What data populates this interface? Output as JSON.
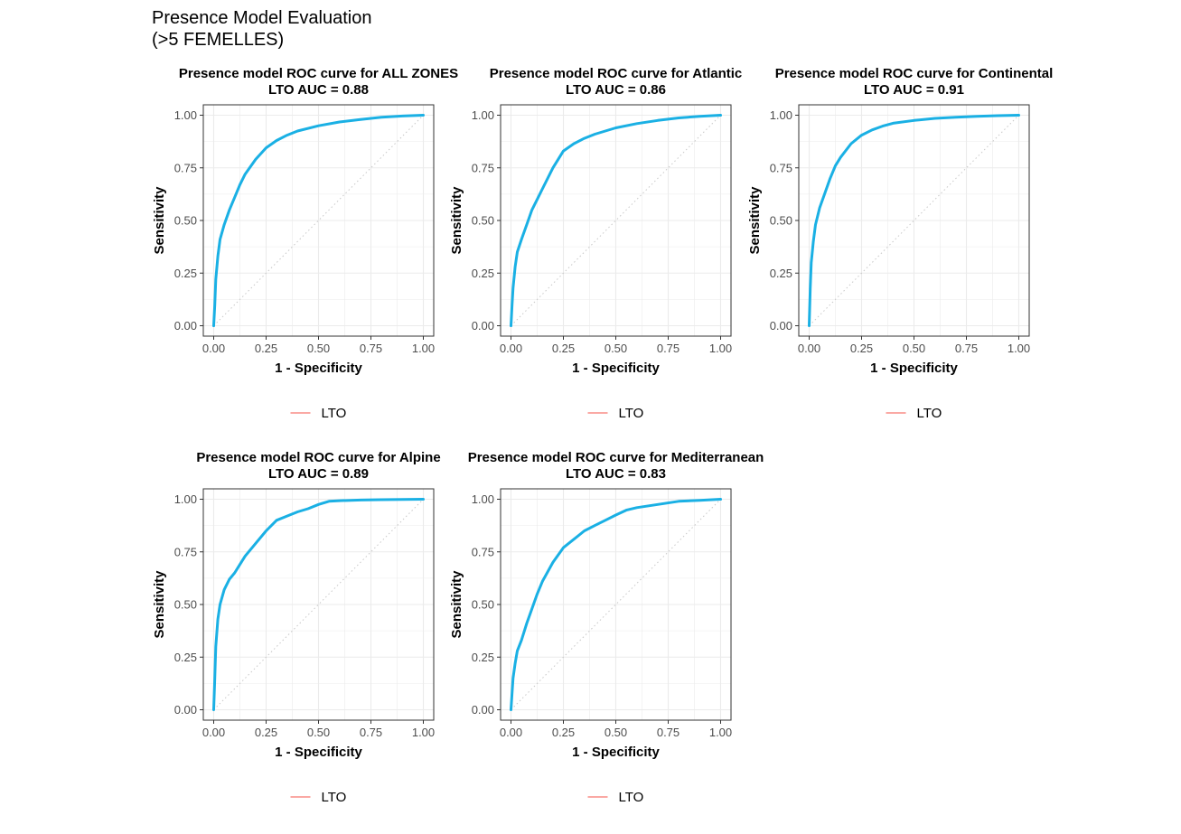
{
  "figure": {
    "title_line1": "Presence Model Evaluation",
    "title_line2": "(>5 FEMELLES)"
  },
  "colors": {
    "curve": "#1ab0e4",
    "legend_line": "#f8766d",
    "diagonal": "#c8c8c8",
    "grid": "#ebebeb",
    "panel_border": "#333333",
    "tick_text": "#4d4d4d"
  },
  "chart_data": [
    {
      "type": "line",
      "title": "Presence model ROC curve for ALL ZONES",
      "subtitle": "LTO AUC = 0.88",
      "xlabel": "1 - Specificity",
      "ylabel": "Sensitivity",
      "xlim": [
        0,
        1
      ],
      "ylim": [
        0,
        1
      ],
      "x_ticks": [
        "0.00",
        "0.25",
        "0.50",
        "0.75",
        "1.00"
      ],
      "y_ticks": [
        "0.00",
        "0.25",
        "0.50",
        "0.75",
        "1.00"
      ],
      "grid": true,
      "legend": {
        "position": "bottom",
        "entries": [
          "LTO"
        ]
      },
      "series": [
        {
          "name": "LTO",
          "x": [
            0,
            0.005,
            0.01,
            0.02,
            0.03,
            0.05,
            0.075,
            0.1,
            0.125,
            0.15,
            0.2,
            0.25,
            0.3,
            0.35,
            0.4,
            0.5,
            0.6,
            0.7,
            0.8,
            0.9,
            1.0
          ],
          "y": [
            0,
            0.1,
            0.22,
            0.33,
            0.41,
            0.48,
            0.55,
            0.61,
            0.67,
            0.72,
            0.79,
            0.845,
            0.88,
            0.905,
            0.925,
            0.95,
            0.968,
            0.98,
            0.99,
            0.996,
            1.0
          ]
        }
      ]
    },
    {
      "type": "line",
      "title": "Presence model ROC curve for Atlantic",
      "subtitle": "LTO AUC = 0.86",
      "xlabel": "1 - Specificity",
      "ylabel": "Sensitivity",
      "xlim": [
        0,
        1
      ],
      "ylim": [
        0,
        1
      ],
      "x_ticks": [
        "0.00",
        "0.25",
        "0.50",
        "0.75",
        "1.00"
      ],
      "y_ticks": [
        "0.00",
        "0.25",
        "0.50",
        "0.75",
        "1.00"
      ],
      "grid": true,
      "legend": {
        "position": "bottom",
        "entries": [
          "LTO"
        ]
      },
      "series": [
        {
          "name": "LTO",
          "x": [
            0,
            0.005,
            0.01,
            0.02,
            0.03,
            0.05,
            0.075,
            0.1,
            0.125,
            0.15,
            0.2,
            0.25,
            0.3,
            0.35,
            0.4,
            0.5,
            0.6,
            0.7,
            0.8,
            0.9,
            1.0
          ],
          "y": [
            0,
            0.1,
            0.18,
            0.28,
            0.35,
            0.41,
            0.48,
            0.55,
            0.6,
            0.65,
            0.75,
            0.83,
            0.865,
            0.89,
            0.91,
            0.94,
            0.96,
            0.975,
            0.987,
            0.995,
            1.0
          ]
        }
      ]
    },
    {
      "type": "line",
      "title": "Presence model ROC curve for Continental",
      "subtitle": "LTO AUC = 0.91",
      "xlabel": "1 - Specificity",
      "ylabel": "Sensitivity",
      "xlim": [
        0,
        1
      ],
      "ylim": [
        0,
        1
      ],
      "x_ticks": [
        "0.00",
        "0.25",
        "0.50",
        "0.75",
        "1.00"
      ],
      "y_ticks": [
        "0.00",
        "0.25",
        "0.50",
        "0.75",
        "1.00"
      ],
      "grid": true,
      "legend": {
        "position": "bottom",
        "entries": [
          "LTO"
        ]
      },
      "series": [
        {
          "name": "LTO",
          "x": [
            0,
            0.005,
            0.01,
            0.02,
            0.03,
            0.05,
            0.075,
            0.1,
            0.125,
            0.15,
            0.2,
            0.25,
            0.3,
            0.35,
            0.4,
            0.5,
            0.6,
            0.7,
            0.8,
            0.9,
            1.0
          ],
          "y": [
            0,
            0.18,
            0.3,
            0.4,
            0.48,
            0.56,
            0.63,
            0.7,
            0.76,
            0.8,
            0.865,
            0.905,
            0.93,
            0.948,
            0.962,
            0.975,
            0.985,
            0.99,
            0.995,
            0.998,
            1.0
          ]
        }
      ]
    },
    {
      "type": "line",
      "title": "Presence model ROC curve for Alpine",
      "subtitle": "LTO AUC = 0.89",
      "xlabel": "1 - Specificity",
      "ylabel": "Sensitivity",
      "xlim": [
        0,
        1
      ],
      "ylim": [
        0,
        1
      ],
      "x_ticks": [
        "0.00",
        "0.25",
        "0.50",
        "0.75",
        "1.00"
      ],
      "y_ticks": [
        "0.00",
        "0.25",
        "0.50",
        "0.75",
        "1.00"
      ],
      "grid": true,
      "legend": {
        "position": "bottom",
        "entries": [
          "LTO"
        ]
      },
      "series": [
        {
          "name": "LTO",
          "x": [
            0,
            0.005,
            0.01,
            0.02,
            0.03,
            0.05,
            0.075,
            0.1,
            0.125,
            0.15,
            0.2,
            0.25,
            0.3,
            0.35,
            0.4,
            0.45,
            0.5,
            0.55,
            0.6,
            0.7,
            0.8,
            0.9,
            1.0
          ],
          "y": [
            0,
            0.15,
            0.3,
            0.43,
            0.5,
            0.57,
            0.62,
            0.65,
            0.69,
            0.73,
            0.79,
            0.85,
            0.9,
            0.92,
            0.94,
            0.955,
            0.975,
            0.99,
            0.993,
            0.996,
            0.998,
            0.999,
            1.0
          ]
        }
      ]
    },
    {
      "type": "line",
      "title": "Presence model ROC curve for Mediterranean",
      "subtitle": "LTO AUC = 0.83",
      "xlabel": "1 - Specificity",
      "ylabel": "Sensitivity",
      "xlim": [
        0,
        1
      ],
      "ylim": [
        0,
        1
      ],
      "x_ticks": [
        "0.00",
        "0.25",
        "0.50",
        "0.75",
        "1.00"
      ],
      "y_ticks": [
        "0.00",
        "0.25",
        "0.50",
        "0.75",
        "1.00"
      ],
      "grid": true,
      "legend": {
        "position": "bottom",
        "entries": [
          "LTO"
        ]
      },
      "series": [
        {
          "name": "LTO",
          "x": [
            0,
            0.005,
            0.01,
            0.02,
            0.03,
            0.05,
            0.075,
            0.1,
            0.125,
            0.15,
            0.2,
            0.25,
            0.3,
            0.35,
            0.4,
            0.45,
            0.5,
            0.55,
            0.6,
            0.7,
            0.8,
            0.9,
            1.0
          ],
          "y": [
            0,
            0.08,
            0.15,
            0.22,
            0.28,
            0.33,
            0.41,
            0.48,
            0.55,
            0.61,
            0.7,
            0.77,
            0.81,
            0.85,
            0.875,
            0.9,
            0.925,
            0.948,
            0.96,
            0.975,
            0.99,
            0.995,
            1.0
          ]
        }
      ]
    }
  ]
}
